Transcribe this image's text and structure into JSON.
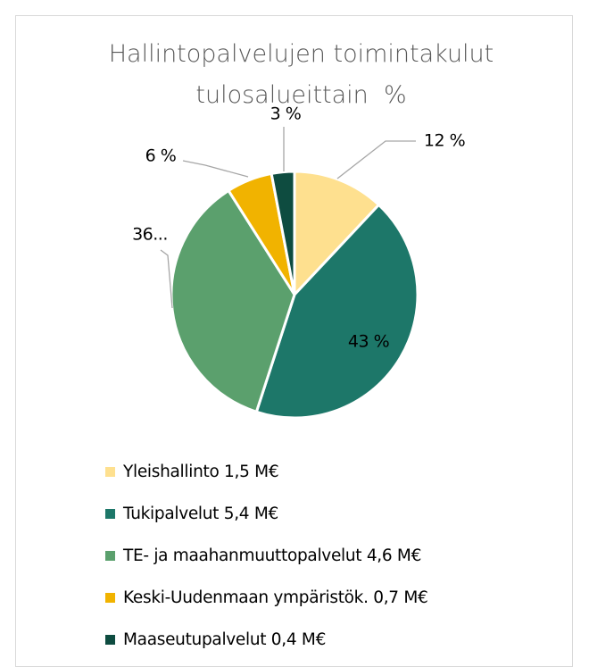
{
  "chart_data": {
    "type": "pie",
    "title": "Hallintopalvelujen toimintakulut tulosalueittain  %",
    "categories": [
      "Yleishallinto 1,5 M€",
      "Tukipalvelut 5,4 M€",
      "TE- ja maahanmuuttopalvelut 4,6 M€",
      "Keski-Uudenmaan ympäristök. 0,7 M€",
      "Maaseutupalvelut 0,4 M€"
    ],
    "values": [
      12,
      43,
      36,
      6,
      3
    ],
    "value_labels": [
      "12 %",
      "43 %",
      "36...",
      "6 %",
      "3 %"
    ],
    "colors": [
      "#fee08f",
      "#1d7769",
      "#5ba06d",
      "#f1b300",
      "#0e4c40"
    ],
    "legend": "bottom"
  }
}
